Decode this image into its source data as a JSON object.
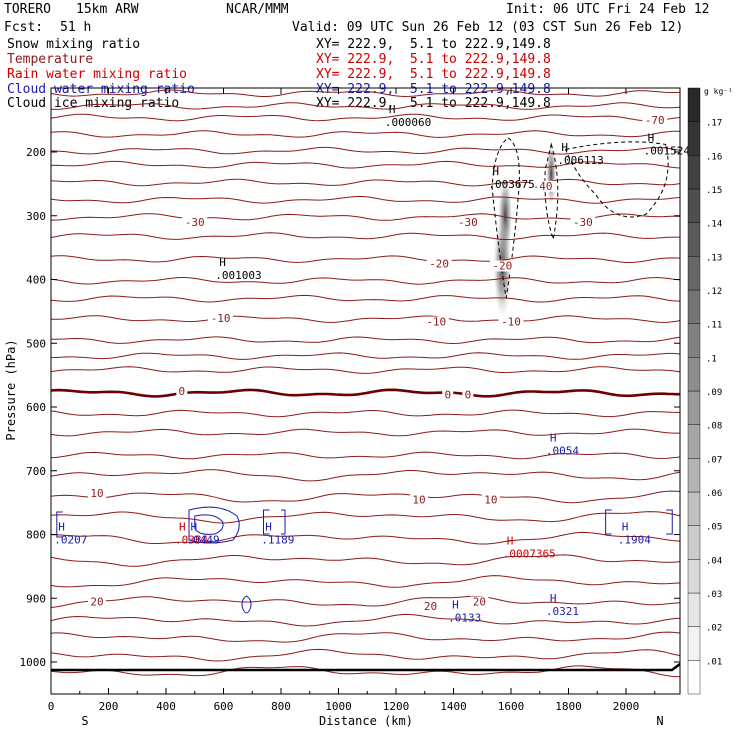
{
  "header": {
    "model": "TORERO",
    "resolution": "15km ARW",
    "org": "NCAR/MMM",
    "init": "Init: 06 UTC Fri 24 Feb 12",
    "fcst_label": "Fcst:",
    "fcst_value": "51 h",
    "valid": "Valid: 09 UTC Sun 26 Feb 12 (03 CST Sun 26 Feb 12)"
  },
  "colors": {
    "snow": "#000000",
    "temperature": "#8b1a1a",
    "rain": "#cc0000",
    "cloud_water": "#1a1aaa",
    "cloud_ice": "#000000",
    "freezing": "#6b0000"
  },
  "chart_data": {
    "type": "cross-section",
    "xlabel": "Distance (km)",
    "ylabel": "Pressure (hPa)",
    "xlim": [
      0,
      2200
    ],
    "ylim": [
      1050,
      100
    ],
    "x_ticks": [
      0,
      200,
      400,
      600,
      800,
      1000,
      1200,
      1400,
      1600,
      1800,
      2000
    ],
    "y_ticks": [
      200,
      300,
      400,
      500,
      600,
      700,
      800,
      900,
      1000
    ],
    "endpoint_labels": {
      "left": "S",
      "right": "N"
    },
    "xy_range": "XY= 222.9,  5.1 to 222.9,149.8",
    "series": [
      {
        "name": "Snow mixing ratio",
        "key": "snow"
      },
      {
        "name": "Temperature",
        "key": "temperature"
      },
      {
        "name": "Rain water mixing ratio",
        "key": "rain"
      },
      {
        "name": "Cloud water mixing ratio",
        "key": "cloud_water"
      },
      {
        "name": "Cloud ice mixing ratio",
        "key": "cloud_ice"
      }
    ],
    "temperature_contours": [
      {
        "label": "-70",
        "x": 2100,
        "p": 150
      },
      {
        "label": "-40",
        "x": 1710,
        "p": 253
      },
      {
        "label": "-30",
        "x": 500,
        "p": 310
      },
      {
        "label": "-30",
        "x": 1450,
        "p": 310
      },
      {
        "label": "-30",
        "x": 1850,
        "p": 310
      },
      {
        "label": "-20",
        "x": 1350,
        "p": 375
      },
      {
        "label": "-20",
        "x": 1570,
        "p": 378
      },
      {
        "label": "-10",
        "x": 590,
        "p": 460
      },
      {
        "label": "-10",
        "x": 1340,
        "p": 466
      },
      {
        "label": "-10",
        "x": 1600,
        "p": 466
      },
      {
        "label": "0",
        "x": 455,
        "p": 575
      },
      {
        "label": "0",
        "x": 1380,
        "p": 580
      },
      {
        "label": "0",
        "x": 1450,
        "p": 580
      },
      {
        "label": "10",
        "x": 160,
        "p": 735
      },
      {
        "label": "10",
        "x": 1280,
        "p": 745
      },
      {
        "label": "10",
        "x": 1530,
        "p": 745
      },
      {
        "label": "20",
        "x": 160,
        "p": 905
      },
      {
        "label": "20",
        "x": 1320,
        "p": 912
      },
      {
        "label": "20",
        "x": 1490,
        "p": 905
      }
    ],
    "maxima": [
      {
        "series": "Snow mixing ratio",
        "value": ".000060",
        "x": 1210,
        "p": 145
      },
      {
        "series": "Snow mixing ratio",
        "value": ".001524",
        "x": 2110,
        "p": 190
      },
      {
        "series": "Snow mixing ratio",
        "value": ".006113",
        "x": 1810,
        "p": 205
      },
      {
        "series": "Snow mixing ratio",
        "value": ".003675",
        "x": 1570,
        "p": 242
      },
      {
        "series": "Snow mixing ratio",
        "value": ".001003",
        "x": 620,
        "p": 385
      },
      {
        "series": "Cloud water mixing ratio",
        "value": ".0054",
        "x": 1770,
        "p": 660
      },
      {
        "series": "Cloud water mixing ratio",
        "value": ".0207",
        "x": 60,
        "p": 800
      },
      {
        "series": "Rain water mixing ratio",
        "value": ".0384",
        "x": 480,
        "p": 800
      },
      {
        "series": "Cloud water mixing ratio",
        "value": ".0449",
        "x": 520,
        "p": 800
      },
      {
        "series": "Cloud water mixing ratio",
        "value": ".1189",
        "x": 780,
        "p": 800
      },
      {
        "series": "Cloud water mixing ratio",
        "value": ".1904",
        "x": 2020,
        "p": 800
      },
      {
        "series": "Rain water mixing ratio",
        "value": ".0007365",
        "x": 1620,
        "p": 822
      },
      {
        "series": "Cloud water mixing ratio",
        "value": ".0133",
        "x": 1430,
        "p": 922
      },
      {
        "series": "Cloud water mixing ratio",
        "value": ".0321",
        "x": 1770,
        "p": 912
      }
    ],
    "colorbar": {
      "unit": "g kg⁻¹",
      "ticks": [
        ".01",
        ".02",
        ".03",
        ".04",
        ".05",
        ".06",
        ".07",
        ".08",
        ".09",
        ".1",
        ".11",
        ".12",
        ".13",
        ".14",
        ".15",
        ".16",
        ".17"
      ],
      "max": 0.18
    }
  }
}
